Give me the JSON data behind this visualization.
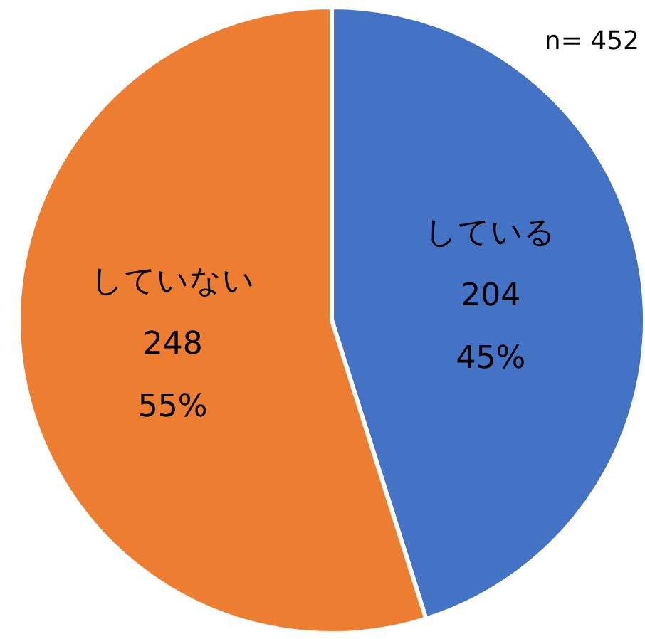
{
  "chart_data": {
    "type": "pie",
    "categories": [
      "している",
      "していない"
    ],
    "values": [
      204,
      248
    ],
    "colors": [
      "#4472c4",
      "#ed7d31"
    ],
    "value_labels": [
      "204\n45%",
      "248\n55%"
    ],
    "annotations": [
      "n= 452"
    ]
  }
}
